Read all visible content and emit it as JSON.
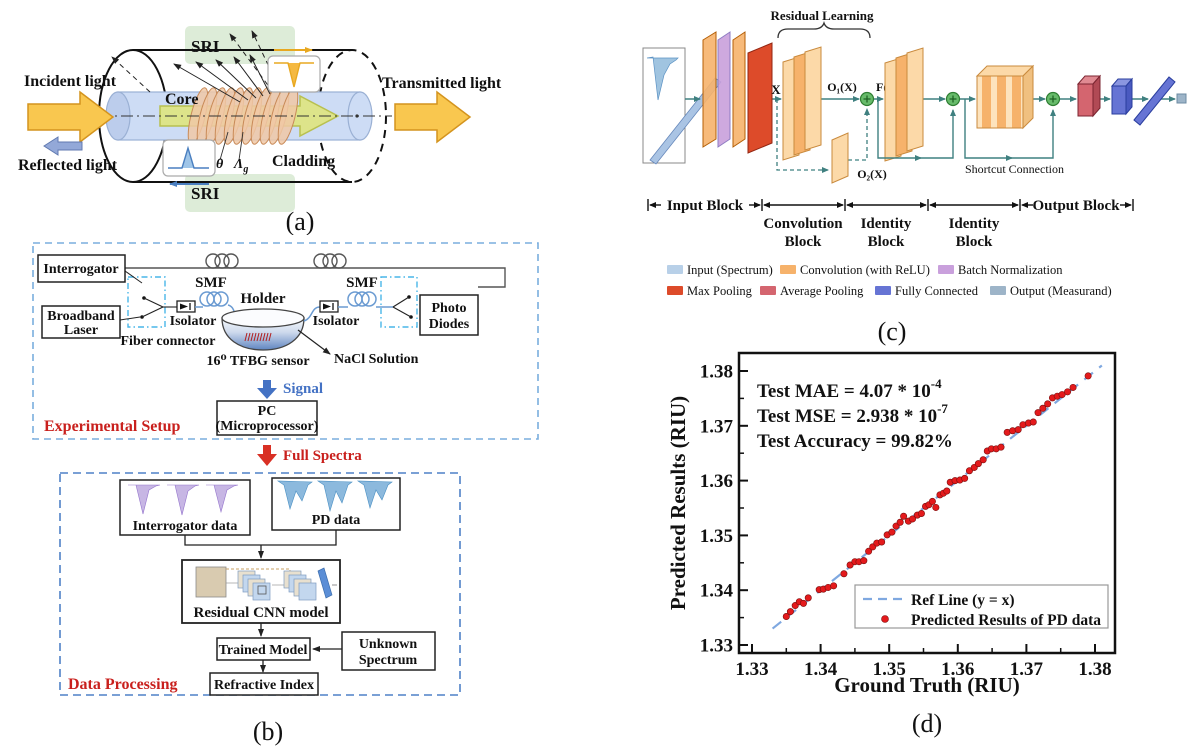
{
  "figure": {
    "panel_a": {
      "label": "(a)",
      "sri_top": "SRI",
      "sri_bottom": "SRI",
      "incident_light": "Incident light",
      "transmitted_light": "Transmitted light",
      "reflected_light": "Reflected light",
      "core": "Core",
      "cladding": "Cladding",
      "theta": "θ",
      "grating_period": "Λ",
      "grating_period_sub": "g"
    },
    "panel_b": {
      "label": "(b)",
      "experimental_setup_title": "Experimental Setup",
      "interrogator": "Interrogator",
      "broadband_laser_line1": "Broadband",
      "broadband_laser_line2": "Laser",
      "fiber_connector": "Fiber connector",
      "smf_left": "SMF",
      "smf_right": "SMF",
      "isolator_left": "Isolator",
      "isolator_right": "Isolator",
      "holder": "Holder",
      "tfbg_sensor": "16⁰ TFBG sensor",
      "nacl_solution": "NaCl Solution",
      "photo_diodes_line1": "Photo",
      "photo_diodes_line2": "Diodes",
      "signal": "Signal",
      "pc_line1": "PC",
      "pc_line2": "(Microprocessor)",
      "full_spectra": "Full Spectra",
      "data_processing_title": "Data Processing",
      "interrogator_data": "Interrogator data",
      "pd_data": "PD data",
      "residual_cnn_model": "Residual CNN model",
      "trained_model": "Trained Model",
      "unknown_spectrum_line1": "Unknown",
      "unknown_spectrum_line2": "Spectrum",
      "refractive_index": "Refractive Index"
    },
    "panel_c": {
      "label": "(c)",
      "residual_learning": "Residual Learning",
      "x_label": "X",
      "o1_label": "O₁(X)",
      "f_label": "F(X)",
      "o2_label": "O₂(X)",
      "shortcut_connection": "Shortcut Connection",
      "blocks": {
        "input": "Input Block",
        "convolution_line1": "Convolution",
        "convolution_line2": "Block",
        "identity1_line1": "Identity",
        "identity1_line2": "Block",
        "identity2_line1": "Identity",
        "identity2_line2": "Block",
        "output": "Output Block"
      },
      "legend": [
        {
          "label": "Input (Spectrum)",
          "color": "#b8d0e8"
        },
        {
          "label": "Convolution (with ReLU)",
          "color": "#f6b26b"
        },
        {
          "label": "Batch Normalization",
          "color": "#c9a0dc"
        },
        {
          "label": "Max Pooling",
          "color": "#dd4b2a"
        },
        {
          "label": "Average Pooling",
          "color": "#d4656f"
        },
        {
          "label": "Fully Connected",
          "color": "#6674d4"
        },
        {
          "label": "Output (Measurand)",
          "color": "#9db4c8"
        }
      ]
    },
    "panel_d": {
      "label": "(d)"
    }
  },
  "chart_data": {
    "type": "scatter",
    "xlabel": "Ground Truth (RIU)",
    "ylabel": "Predicted Results (RIU)",
    "xlim": [
      1.3281,
      1.3829
    ],
    "ylim": [
      1.3285,
      1.3833
    ],
    "xticks": [
      1.33,
      1.34,
      1.35,
      1.36,
      1.37,
      1.38
    ],
    "yticks": [
      1.33,
      1.34,
      1.35,
      1.36,
      1.37,
      1.38
    ],
    "grid": false,
    "annotations": [
      {
        "text": "Test MAE = 4.07 * 10",
        "sup": "-4"
      },
      {
        "text": "Test MSE = 2.938 * 10",
        "sup": "-7"
      },
      {
        "text": "Test Accuracy = 99.82%",
        "sup": ""
      }
    ],
    "legend": [
      {
        "label": "Ref Line (y = x)",
        "color": "#7fa8e0",
        "marker": "dashed-line"
      },
      {
        "label": "Predicted Results of PD data",
        "color": "#e41a1c",
        "marker": "dot"
      }
    ],
    "ref_line": {
      "x": [
        1.333,
        1.381
      ],
      "y": [
        1.333,
        1.381
      ]
    },
    "series": [
      {
        "name": "Predicted Results of PD data",
        "color": "#e41a1c",
        "points": [
          [
            1.335,
            1.3352
          ],
          [
            1.3356,
            1.3361
          ],
          [
            1.3363,
            1.3372
          ],
          [
            1.3369,
            1.3379
          ],
          [
            1.3375,
            1.3376
          ],
          [
            1.3382,
            1.3386
          ],
          [
            1.3398,
            1.3401
          ],
          [
            1.3404,
            1.3402
          ],
          [
            1.3411,
            1.3405
          ],
          [
            1.3419,
            1.3408
          ],
          [
            1.3434,
            1.343
          ],
          [
            1.3443,
            1.3446
          ],
          [
            1.345,
            1.3452
          ],
          [
            1.3456,
            1.3452
          ],
          [
            1.3463,
            1.3454
          ],
          [
            1.347,
            1.3471
          ],
          [
            1.3476,
            1.3479
          ],
          [
            1.3482,
            1.3486
          ],
          [
            1.3489,
            1.3488
          ],
          [
            1.3497,
            1.3501
          ],
          [
            1.3504,
            1.3506
          ],
          [
            1.351,
            1.3517
          ],
          [
            1.3516,
            1.3524
          ],
          [
            1.3521,
            1.3535
          ],
          [
            1.3528,
            1.3526
          ],
          [
            1.3534,
            1.353
          ],
          [
            1.3541,
            1.3537
          ],
          [
            1.3547,
            1.354
          ],
          [
            1.3553,
            1.3553
          ],
          [
            1.3558,
            1.3556
          ],
          [
            1.3563,
            1.3562
          ],
          [
            1.3568,
            1.3551
          ],
          [
            1.3574,
            1.3574
          ],
          [
            1.3579,
            1.3577
          ],
          [
            1.3584,
            1.3581
          ],
          [
            1.3589,
            1.3597
          ],
          [
            1.3596,
            1.36
          ],
          [
            1.3603,
            1.3601
          ],
          [
            1.361,
            1.3604
          ],
          [
            1.3617,
            1.3618
          ],
          [
            1.3624,
            1.3624
          ],
          [
            1.363,
            1.3631
          ],
          [
            1.3637,
            1.3638
          ],
          [
            1.3643,
            1.3654
          ],
          [
            1.3649,
            1.3658
          ],
          [
            1.3656,
            1.3658
          ],
          [
            1.3663,
            1.3661
          ],
          [
            1.3672,
            1.3688
          ],
          [
            1.368,
            1.3691
          ],
          [
            1.3688,
            1.3693
          ],
          [
            1.3695,
            1.3702
          ],
          [
            1.3703,
            1.3705
          ],
          [
            1.371,
            1.3707
          ],
          [
            1.3717,
            1.3724
          ],
          [
            1.3724,
            1.3732
          ],
          [
            1.3731,
            1.374
          ],
          [
            1.3738,
            1.3751
          ],
          [
            1.3745,
            1.3754
          ],
          [
            1.3752,
            1.3757
          ],
          [
            1.376,
            1.3762
          ],
          [
            1.3768,
            1.377
          ],
          [
            1.379,
            1.3791
          ]
        ]
      }
    ]
  }
}
